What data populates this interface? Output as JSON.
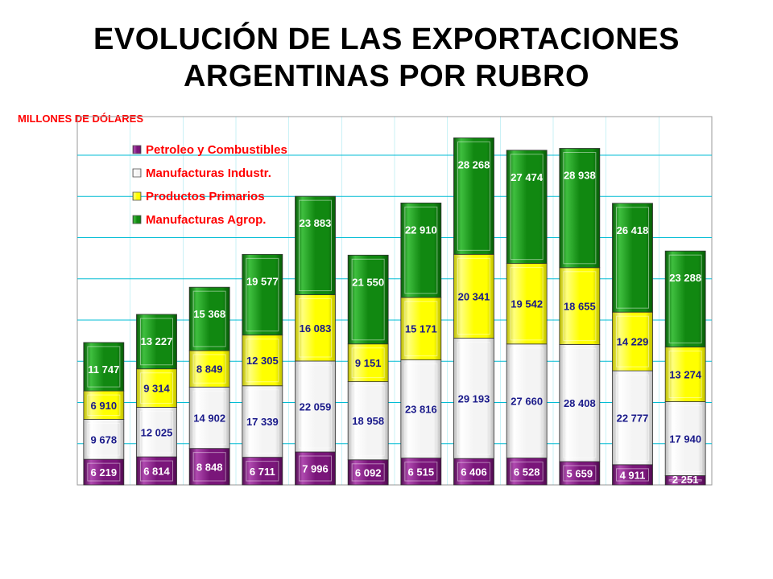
{
  "title": {
    "line1": "EVOLUCIÓN DE LAS EXPORTACIONES",
    "line2": "ARGENTINAS POR RUBRO"
  },
  "units_label": "MILLONES DE DÓLARES",
  "colors": {
    "petroleo": "#7a167a",
    "manufacturas_industriales": "#ffffff",
    "productos_primarios": "#ffff00",
    "manufacturas_agropecuarias": "#118811",
    "grid": "#00bcd4",
    "segment_label": "#ffffff",
    "dark_label": "#1a1a8a"
  },
  "chart_data": {
    "type": "bar",
    "stacked": true,
    "categories": [
      "",
      "",
      "",
      "",
      "",
      "",
      "",
      "",
      "",
      "",
      "",
      ""
    ],
    "ylim": [
      0,
      90000
    ],
    "grid": true,
    "legend_position": "top-left",
    "series": [
      {
        "name": "Petroleo y Combustibles",
        "key": "petroleo",
        "values": [
          6219,
          6814,
          8848,
          6711,
          7996,
          6092,
          6515,
          6406,
          6528,
          5659,
          4911,
          2251
        ],
        "labels": [
          "6 219",
          "6 814",
          "8 848",
          "6 711",
          "7 996",
          "6 092",
          "6 515",
          "6 406",
          "6 528",
          "5 659",
          "4 911",
          "2 251"
        ]
      },
      {
        "name": "Manufacturas Industr.",
        "key": "manufacturas_industriales",
        "values": [
          9678,
          12025,
          14902,
          17339,
          22059,
          18958,
          23816,
          29193,
          27660,
          28408,
          22777,
          17940
        ],
        "labels": [
          "9 678",
          "12 025",
          "14 902",
          "17 339",
          "22 059",
          "18 958",
          "23 816",
          "29 193",
          "27 660",
          "28 408",
          "22 777",
          "17 940"
        ]
      },
      {
        "name": "Productos Primarios",
        "key": "productos_primarios",
        "values": [
          6910,
          9314,
          8849,
          12305,
          16083,
          9151,
          15171,
          20341,
          19542,
          18655,
          14229,
          13274
        ],
        "labels": [
          "6 910",
          "9 314",
          "8 849",
          "12 305",
          "16 083",
          "9 151",
          "15 171",
          "20 341",
          "19 542",
          "18 655",
          "14 229",
          "13 274"
        ]
      },
      {
        "name": "Manufacturas Agrop.",
        "key": "manufacturas_agropecuarias",
        "values": [
          11747,
          13227,
          15368,
          19577,
          23883,
          21550,
          22910,
          28268,
          27474,
          28938,
          26418,
          23288
        ],
        "labels": [
          "11 747",
          "13 227",
          "15 368",
          "19 577",
          "23 883",
          "21 550",
          "22 910",
          "28 268",
          "27 474",
          "28 938",
          "26 418",
          "23 288"
        ]
      }
    ]
  }
}
